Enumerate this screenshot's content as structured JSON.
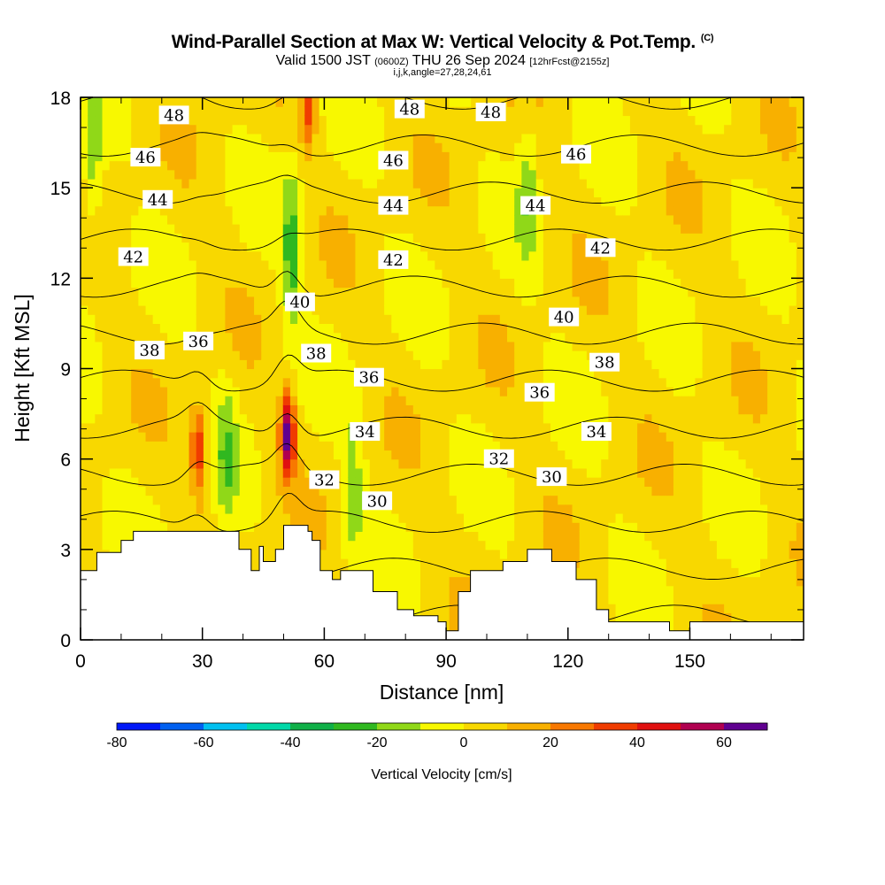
{
  "title": "Wind-Parallel Section at Max W: Vertical Velocity & Pot.Temp.",
  "title_mark": "(C)",
  "subtitle_main": "Valid 1500 JST",
  "subtitle_z": "(0600Z)",
  "subtitle_date": "THU 26 Sep 2024",
  "subtitle_fcst": "[12hrFcst@2155z]",
  "subsubtitle": "i,j,k,angle=27,28,24,61",
  "chart_data": {
    "type": "heatmap",
    "title": "Wind-Parallel Section at Max W: Vertical Velocity & Pot.Temp.",
    "xlabel": "Distance [nm]",
    "ylabel": "Height [Kft MSL]",
    "xlim": [
      0,
      178
    ],
    "ylim": [
      0,
      18
    ],
    "xticks": [
      0,
      30,
      60,
      90,
      120,
      150
    ],
    "yticks": [
      0,
      3,
      6,
      9,
      12,
      15,
      18
    ],
    "colorbar": {
      "label": "Vertical Velocity [cm/s]",
      "min": -80,
      "max": 70,
      "step": 10,
      "ticks": [
        -80,
        -60,
        -40,
        -20,
        0,
        20,
        40,
        60
      ],
      "colors": [
        "#0018f8",
        "#0060f0",
        "#00c0f0",
        "#00d8a8",
        "#10b048",
        "#30b820",
        "#90d818",
        "#f8f800",
        "#f8d800",
        "#f8b000",
        "#f87800",
        "#f03c00",
        "#e01010",
        "#b00050",
        "#600090"
      ]
    },
    "terrain_kft": [
      [
        0,
        2.3
      ],
      [
        4,
        2.9
      ],
      [
        10,
        3.3
      ],
      [
        13,
        3.6
      ],
      [
        20,
        3.6
      ],
      [
        25,
        3.6
      ],
      [
        30,
        3.6
      ],
      [
        33,
        3.6
      ],
      [
        38,
        3.6
      ],
      [
        39,
        3.0
      ],
      [
        42,
        2.3
      ],
      [
        44,
        3.1
      ],
      [
        45,
        2.6
      ],
      [
        48,
        3.0
      ],
      [
        50,
        3.8
      ],
      [
        55,
        3.8
      ],
      [
        56,
        3.6
      ],
      [
        57,
        3.3
      ],
      [
        59,
        2.3
      ],
      [
        62,
        2.0
      ],
      [
        64,
        2.3
      ],
      [
        70,
        2.3
      ],
      [
        72,
        1.6
      ],
      [
        78,
        1.0
      ],
      [
        80,
        1.0
      ],
      [
        82,
        0.8
      ],
      [
        86,
        0.8
      ],
      [
        88,
        0.6
      ],
      [
        90,
        0.3
      ],
      [
        93,
        1.6
      ],
      [
        96,
        2.3
      ],
      [
        104,
        2.6
      ],
      [
        110,
        3.0
      ],
      [
        116,
        2.6
      ],
      [
        120,
        2.6
      ],
      [
        122,
        2.0
      ],
      [
        127,
        1.0
      ],
      [
        130,
        0.6
      ],
      [
        143,
        0.6
      ],
      [
        145,
        0.3
      ],
      [
        150,
        0.6
      ],
      [
        155,
        0.6
      ],
      [
        178,
        0.6
      ]
    ],
    "updrafts_cm_s": [
      {
        "x_nm": 29,
        "z_kft": 6.3,
        "peak": 40
      },
      {
        "x_nm": 51,
        "z_kft": 6.8,
        "peak": 60
      },
      {
        "x_nm": 56,
        "z_kft": 17.6,
        "peak": 30
      }
    ],
    "downdrafts_cm_s": [
      {
        "x_nm": 3,
        "z_kft": 15.5,
        "peak": -10
      },
      {
        "x_nm": 36,
        "z_kft": 6.0,
        "peak": -10
      },
      {
        "x_nm": 52,
        "z_kft": 13.0,
        "peak": -20
      },
      {
        "x_nm": 67,
        "z_kft": 5.0,
        "peak": -10
      },
      {
        "x_nm": 110,
        "z_kft": 15.0,
        "peak": -10
      }
    ],
    "theta_contour_labels": [
      {
        "label": "48",
        "x_nm": 23,
        "z_kft": 17.4
      },
      {
        "label": "48",
        "x_nm": 81,
        "z_kft": 17.6
      },
      {
        "label": "48",
        "x_nm": 101,
        "z_kft": 17.5
      },
      {
        "label": "46",
        "x_nm": 16,
        "z_kft": 16.0
      },
      {
        "label": "46",
        "x_nm": 77,
        "z_kft": 15.9
      },
      {
        "label": "46",
        "x_nm": 122,
        "z_kft": 16.1
      },
      {
        "label": "44",
        "x_nm": 19,
        "z_kft": 14.6
      },
      {
        "label": "44",
        "x_nm": 77,
        "z_kft": 14.4
      },
      {
        "label": "44",
        "x_nm": 112,
        "z_kft": 14.4
      },
      {
        "label": "42",
        "x_nm": 13,
        "z_kft": 12.7
      },
      {
        "label": "42",
        "x_nm": 77,
        "z_kft": 12.6
      },
      {
        "label": "42",
        "x_nm": 128,
        "z_kft": 13.0
      },
      {
        "label": "40",
        "x_nm": 54,
        "z_kft": 11.2
      },
      {
        "label": "40",
        "x_nm": 119,
        "z_kft": 10.7
      },
      {
        "label": "38",
        "x_nm": 17,
        "z_kft": 9.6
      },
      {
        "label": "38",
        "x_nm": 58,
        "z_kft": 9.5
      },
      {
        "label": "38",
        "x_nm": 129,
        "z_kft": 9.2
      },
      {
        "label": "36",
        "x_nm": 29,
        "z_kft": 9.9
      },
      {
        "label": "36",
        "x_nm": 71,
        "z_kft": 8.7
      },
      {
        "label": "36",
        "x_nm": 113,
        "z_kft": 8.2
      },
      {
        "label": "34",
        "x_nm": 70,
        "z_kft": 6.9
      },
      {
        "label": "34",
        "x_nm": 127,
        "z_kft": 6.9
      },
      {
        "label": "32",
        "x_nm": 60,
        "z_kft": 5.3
      },
      {
        "label": "32",
        "x_nm": 103,
        "z_kft": 6.0
      },
      {
        "label": "30",
        "x_nm": 73,
        "z_kft": 4.6
      },
      {
        "label": "30",
        "x_nm": 116,
        "z_kft": 5.4
      }
    ]
  }
}
